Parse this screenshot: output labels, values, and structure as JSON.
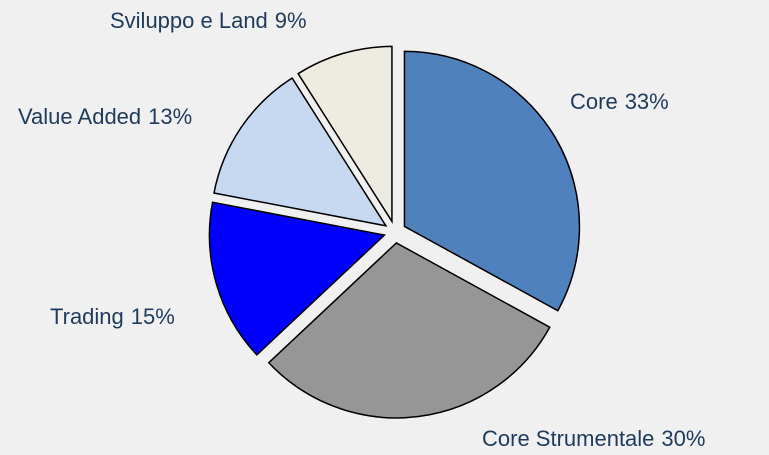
{
  "chart_data": {
    "type": "pie",
    "categories": [
      "Core",
      "Core Strumentale",
      "Trading",
      "Value Added",
      "Sviluppo e Land"
    ],
    "values": [
      33,
      30,
      15,
      13,
      9
    ],
    "value_labels": [
      "33%",
      "30%",
      "15%",
      "13%",
      "9%"
    ],
    "colors": [
      "#4f81bd",
      "#969696",
      "#0000ff",
      "#c6d9f0",
      "#eeece1"
    ]
  }
}
